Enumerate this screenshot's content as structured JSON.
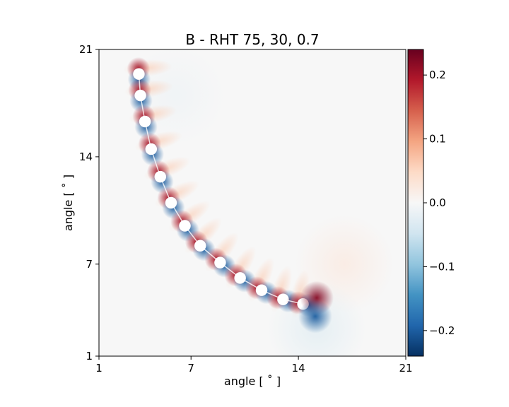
{
  "chart_data": {
    "type": "heatmap",
    "title": "B - RHT 75, 30, 0.7",
    "xlabel": "angle [ $^{\\circ}$ ]",
    "ylabel": "angle [ $^{\\circ}$ ]",
    "xlabel_display": "angle [ ˚ ]",
    "ylabel_display": "angle [ ˚ ]",
    "xlim": [
      1,
      21
    ],
    "ylim": [
      1,
      21
    ],
    "xticks": [
      1,
      7,
      14,
      21
    ],
    "yticks": [
      1,
      7,
      14,
      21
    ],
    "colormap": "RdBu_r",
    "colorbar": {
      "vmin": -0.24,
      "vmax": 0.24,
      "ticks": [
        0.2,
        0.1,
        0.0,
        -0.1,
        -0.2
      ],
      "tick_labels": [
        "0.2",
        "0.1",
        "0.0",
        "−0.1",
        "−0.2"
      ]
    },
    "arc_dipoles": [
      {
        "x": 3.6,
        "y": 19.4
      },
      {
        "x": 3.7,
        "y": 18.0
      },
      {
        "x": 4.0,
        "y": 16.3
      },
      {
        "x": 4.4,
        "y": 14.5
      },
      {
        "x": 5.0,
        "y": 12.7
      },
      {
        "x": 5.7,
        "y": 11.0
      },
      {
        "x": 6.6,
        "y": 9.5
      },
      {
        "x": 7.6,
        "y": 8.2
      },
      {
        "x": 8.9,
        "y": 7.1
      },
      {
        "x": 10.2,
        "y": 6.1
      },
      {
        "x": 11.6,
        "y": 5.3
      },
      {
        "x": 13.0,
        "y": 4.7
      },
      {
        "x": 14.3,
        "y": 4.4
      }
    ],
    "tail_blobs": [
      {
        "x": 15.2,
        "y": 4.8,
        "value": 0.22
      },
      {
        "x": 15.1,
        "y": 3.6,
        "value": -0.2
      }
    ],
    "background_lobes": [
      {
        "x": 17.0,
        "y": 7.0,
        "value": 0.02
      },
      {
        "x": 15.2,
        "y": 2.8,
        "value": -0.025
      },
      {
        "x": 6.0,
        "y": 18.0,
        "value": -0.01
      }
    ]
  }
}
